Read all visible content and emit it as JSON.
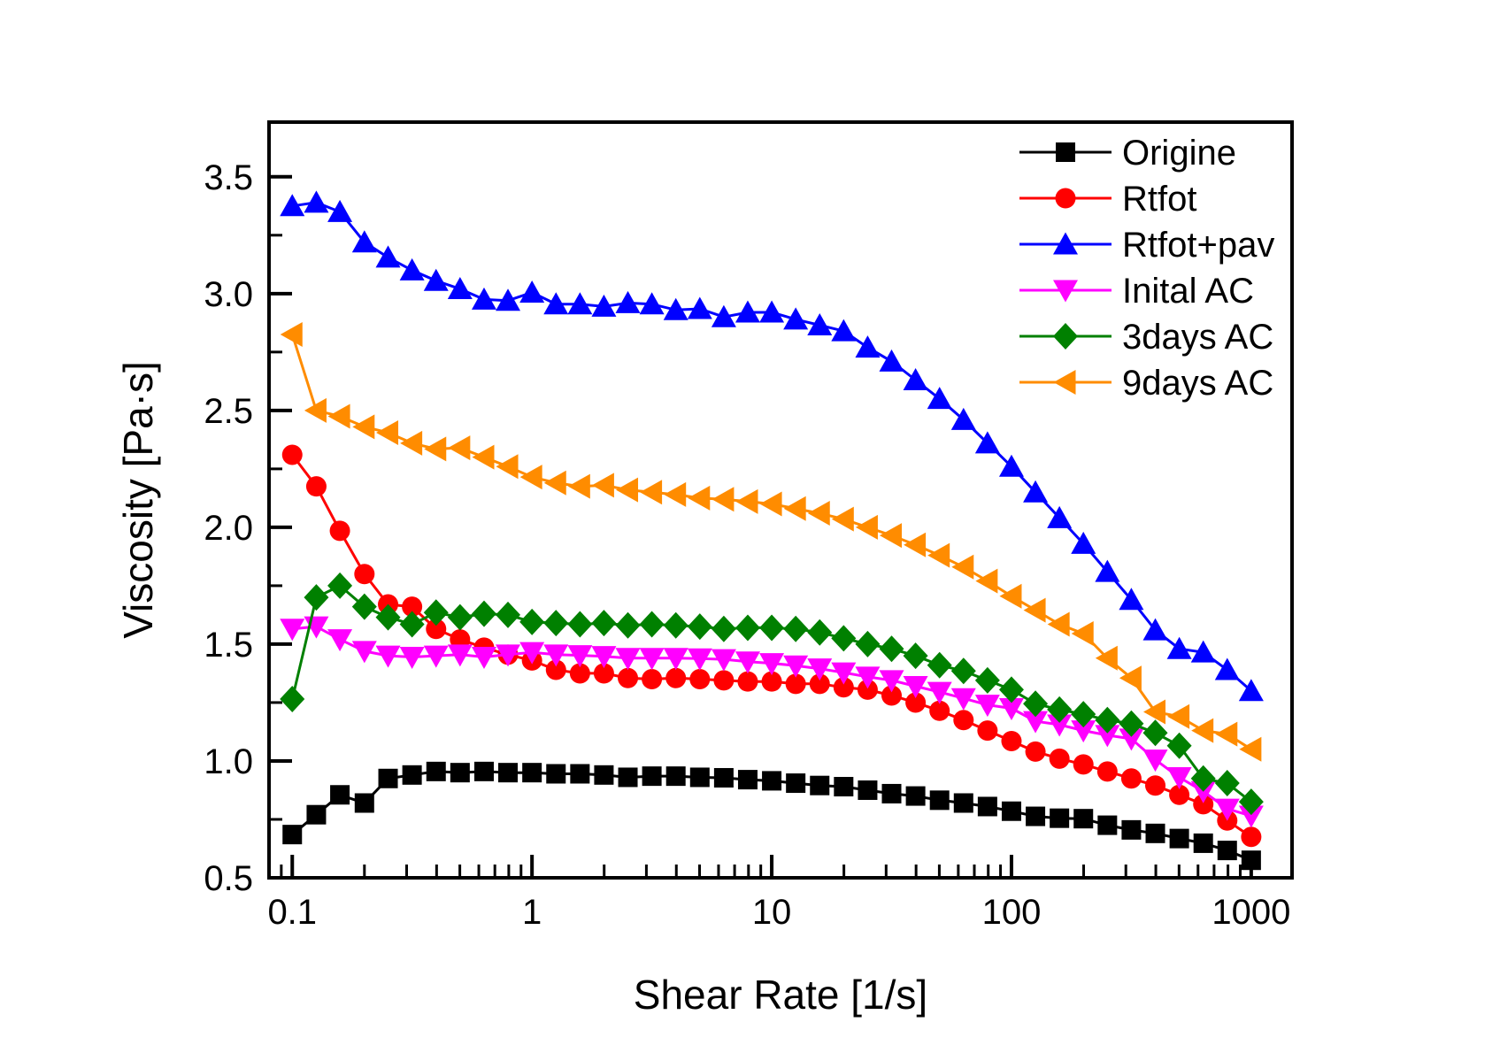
{
  "chart_data": {
    "type": "line",
    "title": "",
    "xlabel": "Shear Rate [1/s]",
    "ylabel": "Viscosity [Pa·s]",
    "x_scale": "log",
    "y_scale": "linear",
    "xlim": [
      0.08,
      1480
    ],
    "ylim": [
      0.5,
      3.734
    ],
    "grid": false,
    "legend_position": "top-right-inside",
    "xticks": {
      "major": [
        0.1,
        1,
        10,
        100,
        1000
      ],
      "labels": [
        "0.1",
        "1",
        "10",
        "100",
        "1000"
      ]
    },
    "yticks": {
      "major": [
        0.5,
        1.0,
        1.5,
        2.0,
        2.5,
        3.0,
        3.5
      ],
      "labels": [
        "0.5",
        "1.0",
        "1.5",
        "2.0",
        "2.5",
        "3.0",
        "3.5"
      ],
      "minor": [
        0.75,
        1.25,
        1.75,
        2.25,
        2.75,
        3.25
      ]
    },
    "x": [
      0.1,
      0.126,
      0.158,
      0.2,
      0.251,
      0.316,
      0.398,
      0.501,
      0.631,
      0.794,
      1.0,
      1.259,
      1.585,
      1.995,
      2.512,
      3.162,
      3.981,
      5.012,
      6.31,
      7.943,
      10.0,
      12.59,
      15.85,
      19.95,
      25.12,
      31.62,
      39.81,
      50.12,
      63.1,
      79.43,
      100.0,
      125.9,
      158.5,
      199.5,
      251.2,
      316.2,
      398.1,
      501.2,
      631.0,
      794.3,
      1000.0
    ],
    "series": [
      {
        "name": "Origine",
        "color": "#000000",
        "marker": "square",
        "values": [
          0.685,
          0.77,
          0.855,
          0.82,
          0.925,
          0.94,
          0.955,
          0.95,
          0.955,
          0.95,
          0.95,
          0.945,
          0.945,
          0.94,
          0.93,
          0.935,
          0.935,
          0.93,
          0.928,
          0.92,
          0.915,
          0.905,
          0.895,
          0.89,
          0.875,
          0.86,
          0.85,
          0.832,
          0.82,
          0.805,
          0.785,
          0.763,
          0.755,
          0.753,
          0.725,
          0.705,
          0.69,
          0.668,
          0.648,
          0.617,
          0.575
        ]
      },
      {
        "name": "Rtfot",
        "color": "#FF0000",
        "marker": "circle",
        "values": [
          2.31,
          2.175,
          1.985,
          1.8,
          1.67,
          1.66,
          1.565,
          1.52,
          1.485,
          1.455,
          1.43,
          1.39,
          1.375,
          1.375,
          1.355,
          1.35,
          1.355,
          1.35,
          1.345,
          1.34,
          1.34,
          1.33,
          1.33,
          1.315,
          1.305,
          1.28,
          1.25,
          1.215,
          1.175,
          1.13,
          1.085,
          1.04,
          1.01,
          0.985,
          0.955,
          0.925,
          0.895,
          0.855,
          0.815,
          0.745,
          0.675
        ]
      },
      {
        "name": "Rtfot+pav",
        "color": "#0000FF",
        "marker": "triangle-up",
        "values": [
          3.375,
          3.39,
          3.35,
          3.22,
          3.155,
          3.1,
          3.055,
          3.02,
          2.975,
          2.97,
          3.005,
          2.955,
          2.955,
          2.945,
          2.96,
          2.955,
          2.93,
          2.935,
          2.9,
          2.92,
          2.92,
          2.89,
          2.865,
          2.84,
          2.77,
          2.71,
          2.63,
          2.55,
          2.46,
          2.36,
          2.26,
          2.15,
          2.04,
          1.93,
          1.81,
          1.69,
          1.56,
          1.48,
          1.465,
          1.39,
          1.3
        ]
      },
      {
        "name": "Inital AC",
        "color": "#FF00FF",
        "marker": "triangle-down",
        "values": [
          1.565,
          1.575,
          1.52,
          1.47,
          1.45,
          1.445,
          1.45,
          1.455,
          1.445,
          1.455,
          1.465,
          1.455,
          1.452,
          1.448,
          1.44,
          1.44,
          1.44,
          1.438,
          1.435,
          1.425,
          1.418,
          1.408,
          1.395,
          1.378,
          1.36,
          1.345,
          1.32,
          1.295,
          1.268,
          1.24,
          1.225,
          1.17,
          1.155,
          1.13,
          1.11,
          1.095,
          1.005,
          0.93,
          0.87,
          0.795,
          0.765
        ]
      },
      {
        "name": "3days AC",
        "color": "#008000",
        "marker": "diamond",
        "values": [
          1.265,
          1.7,
          1.75,
          1.66,
          1.615,
          1.585,
          1.635,
          1.615,
          1.63,
          1.625,
          1.595,
          1.59,
          1.585,
          1.59,
          1.58,
          1.585,
          1.58,
          1.575,
          1.565,
          1.57,
          1.57,
          1.565,
          1.55,
          1.525,
          1.5,
          1.48,
          1.45,
          1.41,
          1.385,
          1.345,
          1.305,
          1.245,
          1.22,
          1.2,
          1.175,
          1.16,
          1.12,
          1.065,
          0.925,
          0.905,
          0.825
        ]
      },
      {
        "name": "9days AC",
        "color": "#FF8C00",
        "marker": "triangle-left",
        "values": [
          2.825,
          2.5,
          2.475,
          2.43,
          2.405,
          2.36,
          2.335,
          2.34,
          2.3,
          2.26,
          2.215,
          2.19,
          2.175,
          2.18,
          2.16,
          2.15,
          2.14,
          2.125,
          2.12,
          2.11,
          2.1,
          2.08,
          2.06,
          2.035,
          2.0,
          1.965,
          1.925,
          1.88,
          1.83,
          1.77,
          1.705,
          1.645,
          1.585,
          1.545,
          1.44,
          1.355,
          1.21,
          1.19,
          1.13,
          1.115,
          1.05
        ]
      }
    ]
  }
}
